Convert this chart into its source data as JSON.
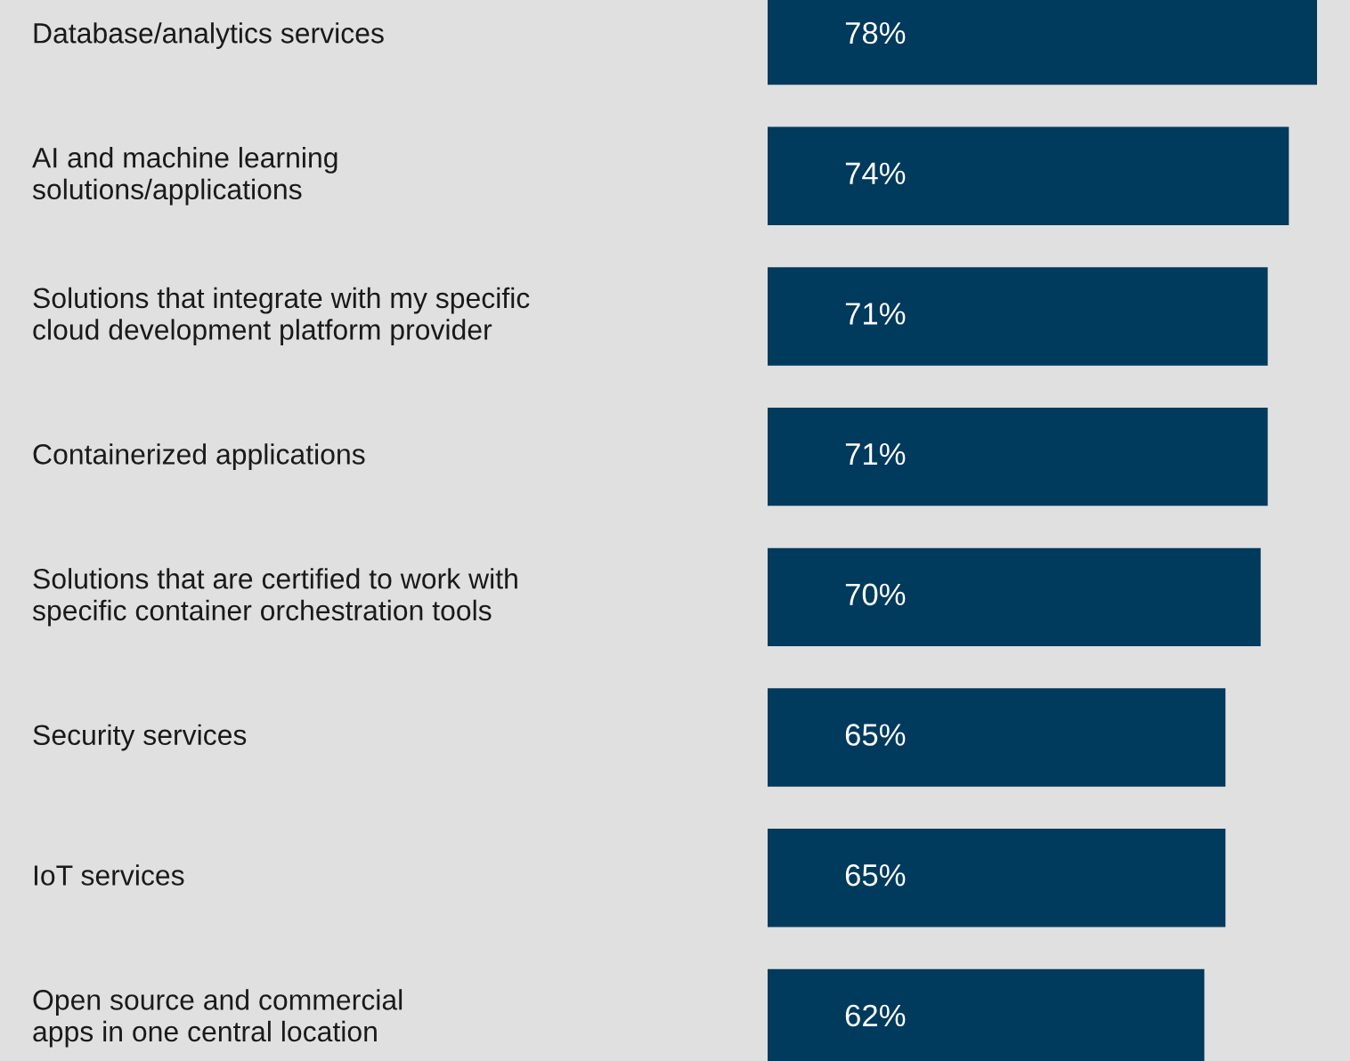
{
  "chart_data": {
    "type": "bar",
    "orientation": "horizontal",
    "categories": [
      "Database/analytics services",
      "AI and machine learning\nsolutions/applications",
      "Solutions that integrate with my specific\ncloud development platform provider",
      "Containerized applications",
      "Solutions that are certified to work with\nspecific container orchestration tools",
      "Security services",
      "IoT services",
      "Open source and commercial\napps in one central location"
    ],
    "values": [
      78,
      74,
      71,
      71,
      70,
      65,
      65,
      62
    ],
    "value_labels": [
      "78%",
      "74%",
      "71%",
      "71%",
      "70%",
      "65%",
      "65%",
      "62%"
    ],
    "color": "#003a5c"
  }
}
